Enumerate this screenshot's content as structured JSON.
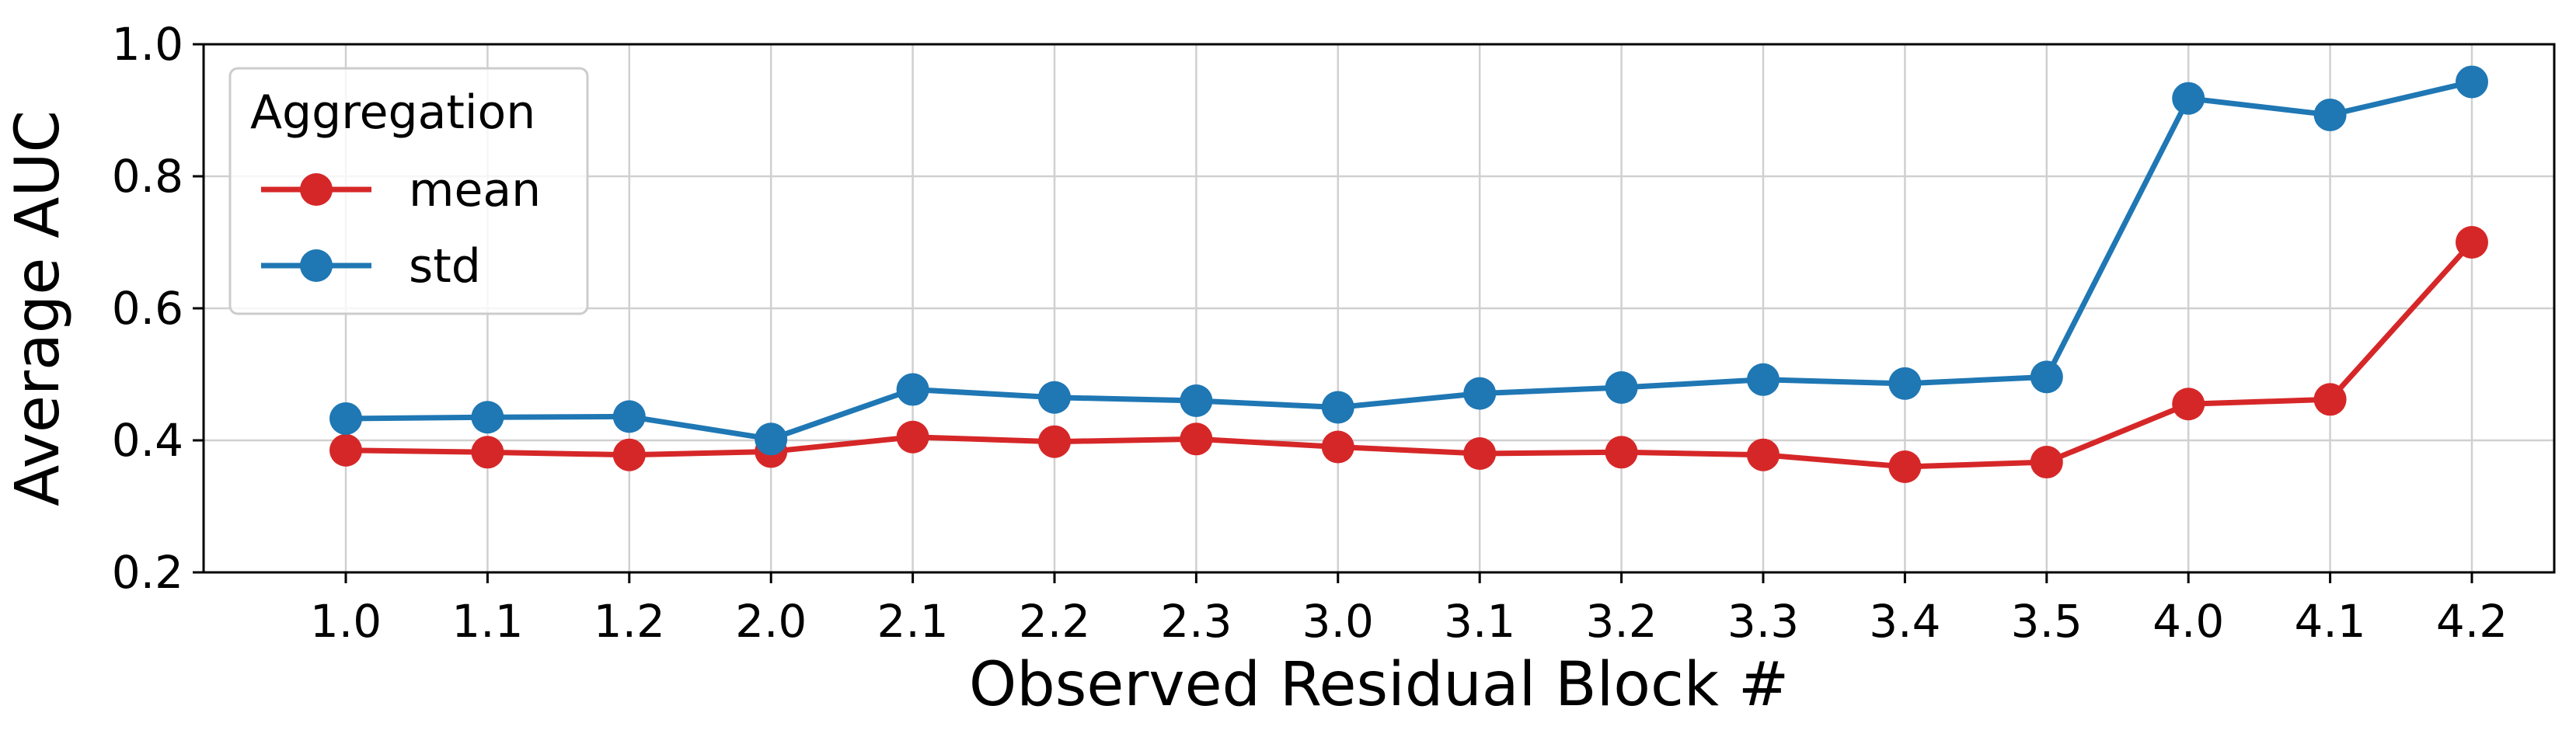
{
  "chart_data": {
    "type": "line",
    "title": "",
    "xlabel": "Observed Residual Block #",
    "ylabel": "Average AUC",
    "categories": [
      "1.0",
      "1.1",
      "1.2",
      "2.0",
      "2.1",
      "2.2",
      "2.3",
      "3.0",
      "3.1",
      "3.2",
      "3.3",
      "3.4",
      "3.5",
      "4.0",
      "4.1",
      "4.2"
    ],
    "ylim": [
      0.2,
      1.0
    ],
    "yticks": [
      "0.2",
      "0.4",
      "0.6",
      "0.8",
      "1.0"
    ],
    "grid": true,
    "legend": {
      "title": "Aggregation",
      "placement": "top-left"
    },
    "series": [
      {
        "name": "mean",
        "color": "#d62728",
        "values": [
          0.385,
          0.382,
          0.378,
          0.383,
          0.405,
          0.398,
          0.402,
          0.39,
          0.38,
          0.382,
          0.378,
          0.36,
          0.367,
          0.455,
          0.462,
          0.7
        ]
      },
      {
        "name": "std",
        "color": "#1f77b4",
        "values": [
          0.433,
          0.435,
          0.436,
          0.402,
          0.477,
          0.465,
          0.46,
          0.45,
          0.471,
          0.48,
          0.492,
          0.486,
          0.496,
          0.918,
          0.893,
          0.943
        ]
      }
    ]
  }
}
